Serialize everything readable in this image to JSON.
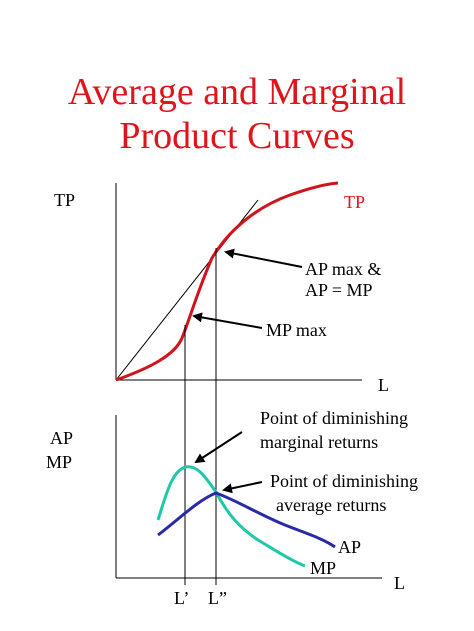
{
  "slide": {
    "title_line1": "Average and Marginal",
    "title_line2": "Product Curves"
  },
  "top_graph": {
    "y_axis_label": "TP",
    "x_axis_label": "L",
    "curve_label": "TP",
    "annotation_inflection": "MP max",
    "annotation_tangent_line1": "AP max &",
    "annotation_tangent_line2": "AP = MP"
  },
  "bottom_graph": {
    "y_axis_label_line1": "AP",
    "y_axis_label_line2": "MP",
    "x_axis_label": "L",
    "ap_label": "AP",
    "mp_label": "MP",
    "annotation_mp_line1": "Point of diminishing",
    "annotation_mp_line2": "marginal returns",
    "annotation_ap_line1": "Point of diminishing",
    "annotation_ap_line2": "average returns",
    "tick_l1": "L’",
    "tick_l2": "L”"
  },
  "colors": {
    "title": "#e0141b",
    "tp_curve": "#d0141c",
    "ap_curve": "#2a2aa8",
    "mp_curve": "#1ec8a8",
    "axes": "#000000"
  }
}
